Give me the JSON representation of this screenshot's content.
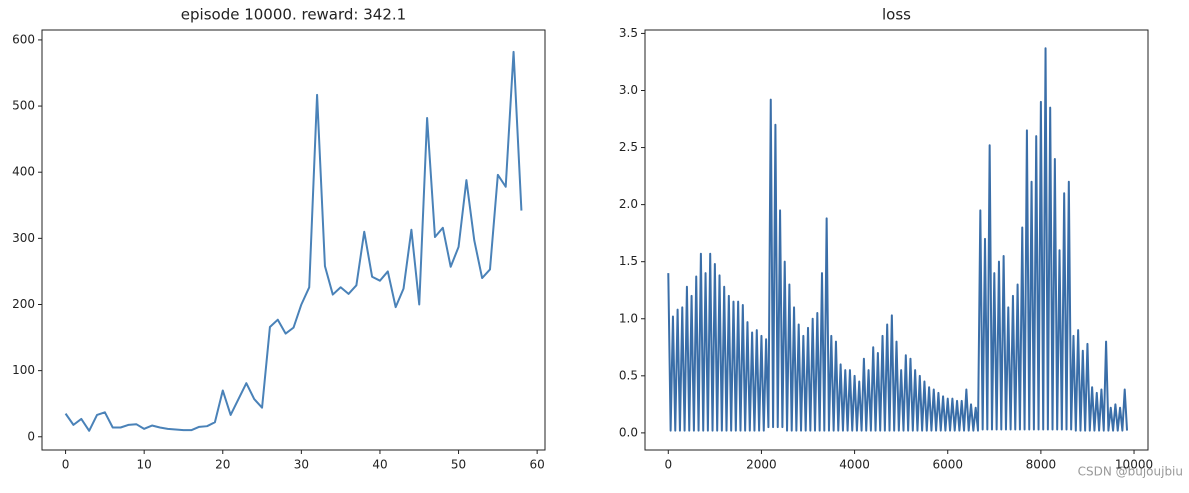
{
  "chart_data": [
    {
      "type": "line",
      "title": "episode 10000. reward: 342.1",
      "x": [
        0,
        1,
        2,
        3,
        4,
        5,
        6,
        7,
        8,
        9,
        10,
        11,
        12,
        13,
        14,
        15,
        16,
        17,
        18,
        19,
        20,
        21,
        22,
        23,
        24,
        25,
        26,
        27,
        28,
        29,
        30,
        31,
        32,
        33,
        34,
        35,
        36,
        37,
        38,
        39,
        40,
        41,
        42,
        43,
        44,
        45,
        46,
        47,
        48,
        49,
        50,
        51,
        52,
        53,
        54,
        55,
        56,
        57,
        58
      ],
      "values": [
        35,
        18,
        27,
        9,
        33,
        37,
        14,
        14,
        18,
        19,
        12,
        17,
        14,
        12,
        11,
        10,
        10,
        15,
        16,
        22,
        70,
        33,
        57,
        81,
        57,
        44,
        166,
        177,
        156,
        165,
        200,
        226,
        517,
        258,
        215,
        226,
        216,
        229,
        310,
        242,
        236,
        250,
        196,
        224,
        313,
        200,
        482,
        302,
        316,
        257,
        287,
        388,
        297,
        240,
        253,
        396,
        378,
        582,
        342
      ],
      "color": "#4a82b8",
      "xlim": [
        -3,
        61
      ],
      "ylim": [
        -20,
        615
      ],
      "xticks": [
        0,
        10,
        20,
        30,
        40,
        50,
        60
      ],
      "yticks": [
        0,
        100,
        200,
        300,
        400,
        500,
        600
      ]
    },
    {
      "type": "line",
      "title": "loss",
      "x": [
        0,
        50,
        100,
        150,
        200,
        250,
        300,
        350,
        400,
        450,
        500,
        550,
        600,
        650,
        700,
        750,
        800,
        850,
        900,
        950,
        1000,
        1050,
        1100,
        1150,
        1200,
        1250,
        1300,
        1350,
        1400,
        1450,
        1500,
        1550,
        1600,
        1650,
        1700,
        1750,
        1800,
        1850,
        1900,
        1950,
        2000,
        2050,
        2100,
        2150,
        2200,
        2250,
        2300,
        2350,
        2400,
        2450,
        2500,
        2550,
        2600,
        2650,
        2700,
        2750,
        2800,
        2850,
        2900,
        2950,
        3000,
        3050,
        3100,
        3150,
        3200,
        3250,
        3300,
        3350,
        3400,
        3450,
        3500,
        3550,
        3600,
        3650,
        3700,
        3750,
        3800,
        3850,
        3900,
        3950,
        4000,
        4050,
        4100,
        4150,
        4200,
        4250,
        4300,
        4350,
        4400,
        4450,
        4500,
        4550,
        4600,
        4650,
        4700,
        4750,
        4800,
        4850,
        4900,
        4950,
        5000,
        5050,
        5100,
        5150,
        5200,
        5250,
        5300,
        5350,
        5400,
        5450,
        5500,
        5550,
        5600,
        5650,
        5700,
        5750,
        5800,
        5850,
        5900,
        5950,
        6000,
        6050,
        6100,
        6150,
        6200,
        6250,
        6300,
        6350,
        6400,
        6450,
        6500,
        6550,
        6600,
        6650,
        6700,
        6750,
        6800,
        6850,
        6900,
        6950,
        7000,
        7050,
        7100,
        7150,
        7200,
        7250,
        7300,
        7350,
        7400,
        7450,
        7500,
        7550,
        7600,
        7650,
        7700,
        7750,
        7800,
        7850,
        7900,
        7950,
        8000,
        8050,
        8100,
        8150,
        8200,
        8250,
        8300,
        8350,
        8400,
        8450,
        8500,
        8550,
        8600,
        8650,
        8700,
        8750,
        8800,
        8850,
        8900,
        8950,
        9000,
        9050,
        9100,
        9150,
        9200,
        9250,
        9300,
        9350,
        9400,
        9450,
        9500,
        9550,
        9600,
        9650,
        9700,
        9750,
        9800,
        9850
      ],
      "values": [
        1.4,
        0.02,
        1.02,
        0.02,
        1.08,
        0.02,
        1.1,
        0.02,
        1.28,
        0.02,
        1.2,
        0.02,
        1.37,
        0.02,
        1.57,
        0.02,
        1.4,
        0.02,
        1.57,
        0.02,
        1.48,
        0.02,
        1.38,
        0.02,
        1.28,
        0.02,
        1.2,
        0.02,
        1.15,
        0.02,
        1.15,
        0.02,
        1.12,
        0.02,
        0.97,
        0.02,
        0.88,
        0.02,
        0.9,
        0.02,
        0.85,
        0.02,
        0.82,
        0.05,
        2.92,
        0.05,
        2.7,
        0.05,
        1.95,
        0.05,
        1.5,
        0.02,
        1.3,
        0.02,
        1.1,
        0.02,
        0.95,
        0.02,
        0.85,
        0.02,
        0.92,
        0.02,
        1,
        0.02,
        1.05,
        0.02,
        1.4,
        0.02,
        1.88,
        0.02,
        0.85,
        0.02,
        0.8,
        0.02,
        0.6,
        0.02,
        0.55,
        0.02,
        0.55,
        0.02,
        0.5,
        0.02,
        0.45,
        0.02,
        0.65,
        0.02,
        0.55,
        0.02,
        0.75,
        0.02,
        0.7,
        0.02,
        0.85,
        0.02,
        0.95,
        0.02,
        1.03,
        0.02,
        0.8,
        0.02,
        0.55,
        0.02,
        0.68,
        0.02,
        0.65,
        0.02,
        0.55,
        0.02,
        0.5,
        0.02,
        0.45,
        0.02,
        0.4,
        0.02,
        0.38,
        0.02,
        0.35,
        0.02,
        0.32,
        0.02,
        0.3,
        0.02,
        0.3,
        0.02,
        0.28,
        0.02,
        0.28,
        0.02,
        0.38,
        0.02,
        0.25,
        0.02,
        0.22,
        0.02,
        1.95,
        0.03,
        1.7,
        0.03,
        2.52,
        0.03,
        1.4,
        0.03,
        1.5,
        0.03,
        1.55,
        0.03,
        1.1,
        0.03,
        1.2,
        0.03,
        1.3,
        0.03,
        1.8,
        0.03,
        2.65,
        0.03,
        2.2,
        0.03,
        2.6,
        0.03,
        2.9,
        0.03,
        3.37,
        0.03,
        2.85,
        0.03,
        2.4,
        0.03,
        1.6,
        0.03,
        2.1,
        0.03,
        2.2,
        0.03,
        0.85,
        0.02,
        0.9,
        0.02,
        0.72,
        0.02,
        0.78,
        0.02,
        0.4,
        0.02,
        0.35,
        0.02,
        0.38,
        0.02,
        0.8,
        0.02,
        0.22,
        0.02,
        0.25,
        0.02,
        0.22,
        0.02,
        0.38,
        0.02
      ],
      "color": "#3a6ea8",
      "xlim": [
        -500,
        10300
      ],
      "ylim": [
        -0.15,
        3.53
      ],
      "xticks": [
        0,
        2000,
        4000,
        6000,
        8000,
        10000
      ],
      "yticks": [
        {
          "value": 0,
          "label": "0.0"
        },
        {
          "value": 0.5,
          "label": "0.5"
        },
        {
          "value": 1,
          "label": "1.0"
        },
        {
          "value": 1.5,
          "label": "1.5"
        },
        {
          "value": 2,
          "label": "2.0"
        },
        {
          "value": 2.5,
          "label": "2.5"
        },
        {
          "value": 3,
          "label": "3.0"
        },
        {
          "value": 3.5,
          "label": "3.5"
        }
      ]
    }
  ],
  "watermark": "CSDN @bujoujbiu"
}
